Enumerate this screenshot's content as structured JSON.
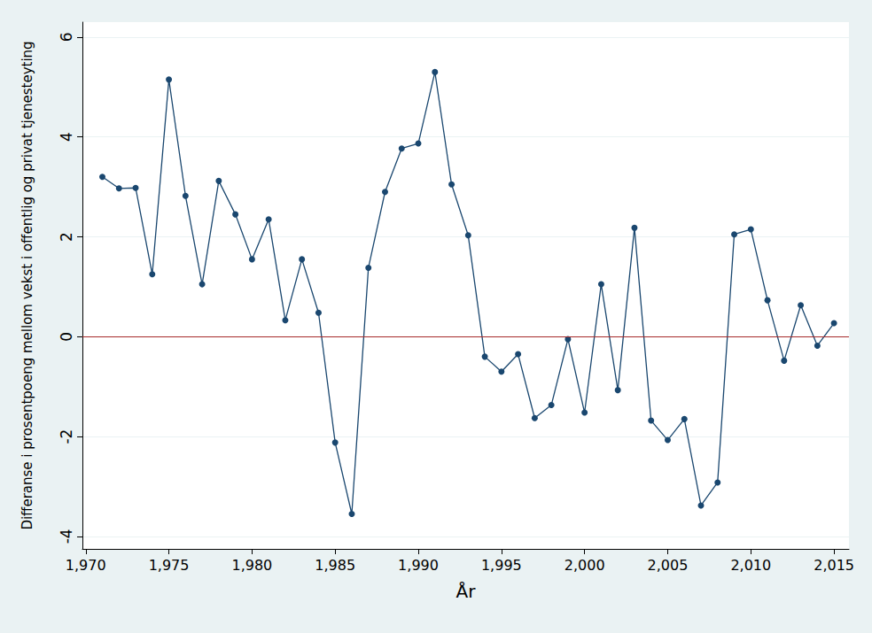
{
  "chart_data": {
    "type": "line",
    "x_label": "År",
    "y_label": "Differanse i prosentpoeng mellom vekst i offentlig og privat tjenesteyting",
    "x": [
      1971,
      1972,
      1973,
      1974,
      1975,
      1976,
      1977,
      1978,
      1979,
      1980,
      1981,
      1982,
      1983,
      1984,
      1985,
      1986,
      1987,
      1988,
      1989,
      1990,
      1991,
      1992,
      1993,
      1994,
      1995,
      1996,
      1997,
      1998,
      1999,
      2000,
      2001,
      2002,
      2003,
      2004,
      2005,
      2006,
      2007,
      2008,
      2009,
      2010,
      2011,
      2012,
      2013,
      2014,
      2015
    ],
    "values": [
      3.2,
      2.97,
      2.98,
      1.25,
      5.15,
      2.82,
      1.05,
      3.12,
      2.45,
      1.55,
      2.35,
      0.33,
      1.55,
      0.48,
      -2.12,
      -3.55,
      1.38,
      2.9,
      3.77,
      3.87,
      5.3,
      3.05,
      2.03,
      -0.4,
      -0.7,
      -0.35,
      -1.63,
      -1.37,
      -0.05,
      -1.52,
      1.05,
      -1.07,
      2.18,
      -1.68,
      -2.07,
      -1.65,
      -3.38,
      -2.92,
      2.05,
      2.15,
      0.73,
      -0.48,
      0.63,
      -0.18,
      0.27
    ],
    "color": "#1a476f",
    "marker": "circle",
    "xlim": [
      1969.8,
      2015.9
    ],
    "xticks": [
      1970,
      1975,
      1980,
      1985,
      1990,
      1995,
      2000,
      2005,
      2010,
      2015
    ],
    "ylim": [
      -4.25,
      6.3
    ],
    "yticks": [
      -4,
      -2,
      0,
      2,
      4,
      6
    ],
    "grid": true,
    "reference_lines": [
      {
        "y": 0,
        "color": "#a52a2a"
      }
    ]
  }
}
